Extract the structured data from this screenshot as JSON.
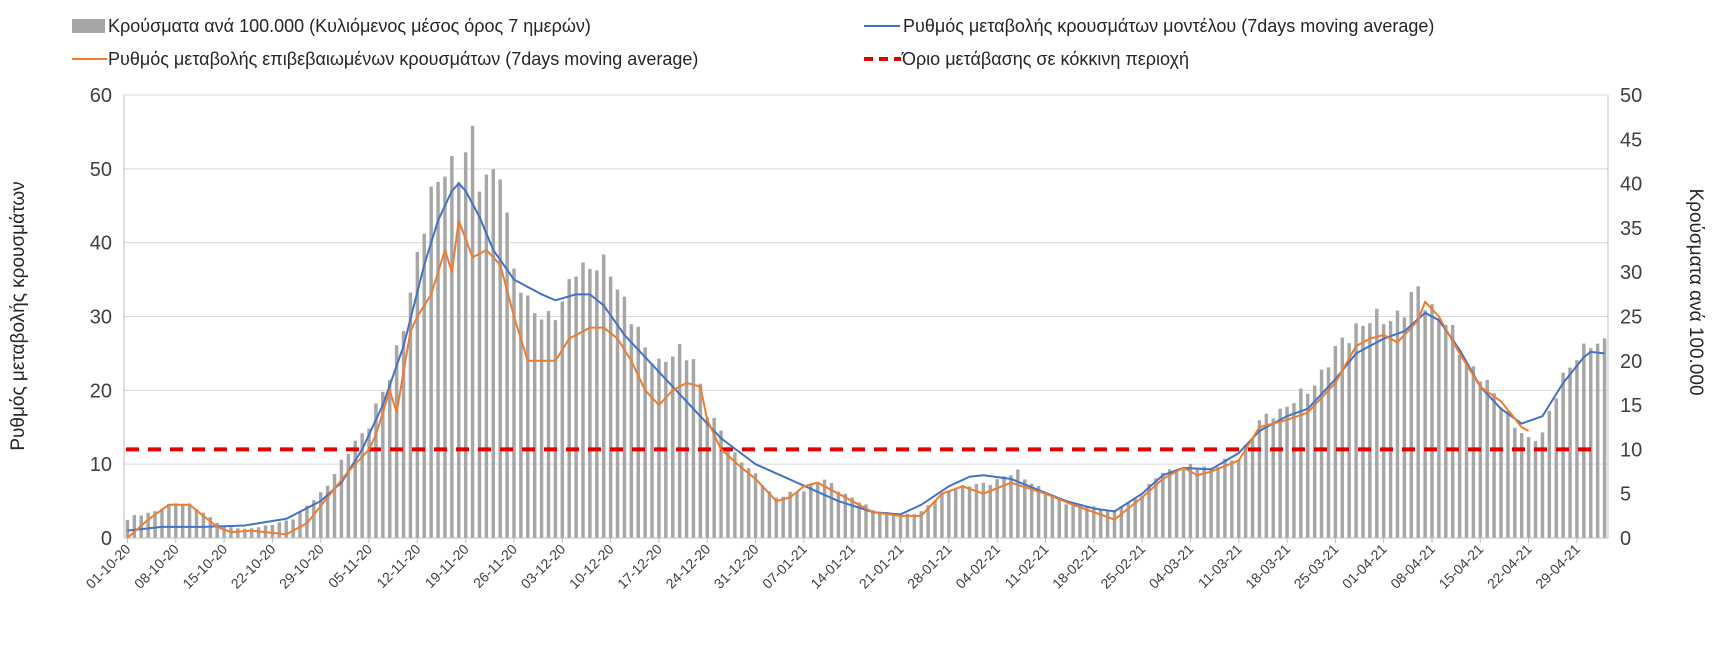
{
  "chart_data": {
    "type": "bar",
    "legend": {
      "bars": "Κρούσματα ανά 100.000 (Κυλιόμενος μέσος όρος 7 ημερών)",
      "model": "Ρυθμός μεταβολής κρουσμάτων μοντέλου (7days moving average)",
      "confirmed": "Ρυθμός μεταβολής επιβεβαιωμένων κρουσμάτων (7days moving average)",
      "threshold": "Όριο μετάβασης σε κόκκινη περιοχή"
    },
    "ylabel_left": "Ρυθμός μεταβολής κρουσμάτων",
    "ylabel_right": "Κρούσματα ανά 100.000",
    "ylim_left": [
      0,
      60
    ],
    "ylim_right": [
      0,
      50
    ],
    "yticks_left": [
      "0",
      "10",
      "20",
      "30",
      "40",
      "50",
      "60"
    ],
    "yticks_right": [
      "0",
      "5",
      "10",
      "15",
      "20",
      "25",
      "30",
      "35",
      "40",
      "45",
      "50"
    ],
    "x_tick_labels": [
      "01-10-20",
      "08-10-20",
      "15-10-20",
      "22-10-20",
      "29-10-20",
      "05-11-20",
      "12-11-20",
      "19-11-20",
      "26-11-20",
      "03-12-20",
      "10-12-20",
      "17-12-20",
      "24-12-20",
      "31-12-20",
      "07-01-21",
      "14-01-21",
      "21-01-21",
      "28-01-21",
      "04-02-21",
      "11-02-21",
      "18-02-21",
      "25-02-21",
      "04-03-21",
      "11-03-21",
      "18-03-21",
      "25-03-21",
      "01-04-21",
      "08-04-21",
      "15-04-21",
      "22-04-21",
      "29-04-21"
    ],
    "x_start": "01-10-20",
    "x_end": "03-05-21",
    "threshold": 12,
    "bars_series": {
      "name": "Κρούσματα ανά 100.000 (Κυλιόμενος μέσος όρος 7 ημερών)",
      "axis": "right",
      "anchors": [
        [
          "01-10-20",
          2.0
        ],
        [
          "02-10-20",
          2.5
        ],
        [
          "05-10-20",
          3.0
        ],
        [
          "08-10-20",
          4.0
        ],
        [
          "10-10-20",
          3.8
        ],
        [
          "12-10-20",
          2.8
        ],
        [
          "15-10-20",
          1.3
        ],
        [
          "18-10-20",
          1.0
        ],
        [
          "22-10-20",
          1.5
        ],
        [
          "25-10-20",
          2.2
        ],
        [
          "29-10-20",
          5.0
        ],
        [
          "01-11-20",
          8.5
        ],
        [
          "05-11-20",
          13.0
        ],
        [
          "08-11-20",
          18.0
        ],
        [
          "12-11-20",
          31.0
        ],
        [
          "14-11-20",
          39.0
        ],
        [
          "16-11-20",
          42.5
        ],
        [
          "18-11-20",
          40.0
        ],
        [
          "19-11-20",
          44.0
        ],
        [
          "20-11-20",
          45.8
        ],
        [
          "21-11-20",
          41.0
        ],
        [
          "23-11-20",
          40.0
        ],
        [
          "24-11-20",
          41.5
        ],
        [
          "26-11-20",
          31.0
        ],
        [
          "28-11-20",
          26.0
        ],
        [
          "30-11-20",
          25.0
        ],
        [
          "03-12-20",
          26.0
        ],
        [
          "05-12-20",
          30.5
        ],
        [
          "07-12-20",
          31.0
        ],
        [
          "10-12-20",
          30.0
        ],
        [
          "12-12-20",
          27.0
        ],
        [
          "15-12-20",
          21.0
        ],
        [
          "17-12-20",
          20.0
        ],
        [
          "20-12-20",
          20.8
        ],
        [
          "22-12-20",
          20.5
        ],
        [
          "24-12-20",
          14.0
        ],
        [
          "26-12-20",
          12.0
        ],
        [
          "28-12-20",
          9.5
        ],
        [
          "31-12-20",
          7.0
        ],
        [
          "03-01-21",
          4.5
        ],
        [
          "05-01-21",
          5.0
        ],
        [
          "07-01-21",
          5.5
        ],
        [
          "10-01-21",
          6.5
        ],
        [
          "14-01-21",
          4.5
        ],
        [
          "17-01-21",
          3.2
        ],
        [
          "21-01-21",
          2.5
        ],
        [
          "24-01-21",
          3.0
        ],
        [
          "28-01-21",
          5.5
        ],
        [
          "01-02-21",
          6.0
        ],
        [
          "04-02-21",
          6.5
        ],
        [
          "07-02-21",
          7.5
        ],
        [
          "11-02-21",
          5.0
        ],
        [
          "14-02-21",
          4.0
        ],
        [
          "18-02-21",
          3.5
        ],
        [
          "21-02-21",
          3.0
        ],
        [
          "25-02-21",
          5.0
        ],
        [
          "28-02-21",
          7.5
        ],
        [
          "04-03-21",
          8.0
        ],
        [
          "07-03-21",
          8.0
        ],
        [
          "11-03-21",
          9.0
        ],
        [
          "14-03-21",
          13.0
        ],
        [
          "18-03-21",
          15.0
        ],
        [
          "21-03-21",
          16.5
        ],
        [
          "25-03-21",
          21.0
        ],
        [
          "28-03-21",
          24.0
        ],
        [
          "01-04-21",
          24.8
        ],
        [
          "04-04-21",
          25.5
        ],
        [
          "06-04-21",
          28.0
        ],
        [
          "08-04-21",
          26.0
        ],
        [
          "11-04-21",
          23.0
        ],
        [
          "13-04-21",
          20.0
        ],
        [
          "15-04-21",
          18.0
        ],
        [
          "18-04-21",
          15.5
        ],
        [
          "20-04-21",
          12.5
        ],
        [
          "22-04-21",
          11.0
        ],
        [
          "24-04-21",
          12.0
        ],
        [
          "27-04-21",
          18.0
        ],
        [
          "29-04-21",
          21.0
        ],
        [
          "03-05-21",
          22.0
        ]
      ]
    },
    "model_series": {
      "name": "Ρυθμός μεταβολής κρουσμάτων μοντέλου (7days moving average)",
      "axis": "left",
      "color": "#4472c4",
      "anchors": [
        [
          "01-10-20",
          1.0
        ],
        [
          "06-10-20",
          1.5
        ],
        [
          "12-10-20",
          1.5
        ],
        [
          "18-10-20",
          1.7
        ],
        [
          "24-10-20",
          2.6
        ],
        [
          "29-10-20",
          5.0
        ],
        [
          "01-11-20",
          7.5
        ],
        [
          "04-11-20",
          12.0
        ],
        [
          "07-11-20",
          18.0
        ],
        [
          "10-11-20",
          26.0
        ],
        [
          "13-11-20",
          37.0
        ],
        [
          "15-11-20",
          43.0
        ],
        [
          "17-11-20",
          47.0
        ],
        [
          "18-11-20",
          48.0
        ],
        [
          "19-11-20",
          47.0
        ],
        [
          "21-11-20",
          43.5
        ],
        [
          "23-11-20",
          39.0
        ],
        [
          "26-11-20",
          35.0
        ],
        [
          "30-11-20",
          33.0
        ],
        [
          "02-12-20",
          32.2
        ],
        [
          "05-12-20",
          33.0
        ],
        [
          "07-12-20",
          33.0
        ],
        [
          "09-12-20",
          31.5
        ],
        [
          "12-12-20",
          27.5
        ],
        [
          "15-12-20",
          24.5
        ],
        [
          "18-12-20",
          21.5
        ],
        [
          "22-12-20",
          17.5
        ],
        [
          "26-12-20",
          13.5
        ],
        [
          "31-12-20",
          10.0
        ],
        [
          "06-01-21",
          7.5
        ],
        [
          "12-01-21",
          5.0
        ],
        [
          "17-01-21",
          3.5
        ],
        [
          "21-01-21",
          3.2
        ],
        [
          "24-01-21",
          4.5
        ],
        [
          "28-01-21",
          7.0
        ],
        [
          "31-01-21",
          8.3
        ],
        [
          "02-02-21",
          8.5
        ],
        [
          "06-02-21",
          8.0
        ],
        [
          "10-02-21",
          6.5
        ],
        [
          "14-02-21",
          5.0
        ],
        [
          "18-02-21",
          4.0
        ],
        [
          "21-02-21",
          3.6
        ],
        [
          "25-02-21",
          6.0
        ],
        [
          "28-02-21",
          8.5
        ],
        [
          "03-03-21",
          9.5
        ],
        [
          "07-03-21",
          9.3
        ],
        [
          "11-03-21",
          11.5
        ],
        [
          "14-03-21",
          14.5
        ],
        [
          "18-03-21",
          16.5
        ],
        [
          "21-03-21",
          17.5
        ],
        [
          "25-03-21",
          21.5
        ],
        [
          "28-03-21",
          25.0
        ],
        [
          "01-04-21",
          27.0
        ],
        [
          "04-04-21",
          28.0
        ],
        [
          "07-04-21",
          30.5
        ],
        [
          "09-04-21",
          29.5
        ],
        [
          "12-04-21",
          25.5
        ],
        [
          "15-04-21",
          20.5
        ],
        [
          "18-04-21",
          17.5
        ],
        [
          "21-04-21",
          15.5
        ],
        [
          "24-04-21",
          16.5
        ],
        [
          "27-04-21",
          21.0
        ],
        [
          "30-04-21",
          24.5
        ],
        [
          "01-05-21",
          25.2
        ],
        [
          "03-05-21",
          25.0
        ]
      ]
    },
    "confirmed_series": {
      "name": "Ρυθμός μεταβολής επιβεβαιωμένων κρουσμάτων (7days moving average)",
      "axis": "left",
      "color": "#ed7d31",
      "anchors": [
        [
          "01-10-20",
          0.0
        ],
        [
          "04-10-20",
          2.5
        ],
        [
          "07-10-20",
          4.5
        ],
        [
          "10-10-20",
          4.5
        ],
        [
          "12-10-20",
          3.0
        ],
        [
          "14-10-20",
          1.5
        ],
        [
          "16-10-20",
          0.8
        ],
        [
          "19-10-20",
          1.0
        ],
        [
          "24-10-20",
          0.5
        ],
        [
          "27-10-20",
          2.0
        ],
        [
          "30-10-20",
          5.5
        ],
        [
          "02-11-20",
          9.0
        ],
        [
          "05-11-20",
          12.0
        ],
        [
          "06-11-20",
          14.0
        ],
        [
          "08-11-20",
          20.0
        ],
        [
          "09-11-20",
          17.0
        ],
        [
          "11-11-20",
          28.0
        ],
        [
          "12-11-20",
          30.0
        ],
        [
          "14-11-20",
          33.0
        ],
        [
          "16-11-20",
          39.0
        ],
        [
          "17-11-20",
          36.0
        ],
        [
          "18-11-20",
          43.0
        ],
        [
          "20-11-20",
          38.0
        ],
        [
          "22-11-20",
          39.0
        ],
        [
          "24-11-20",
          37.0
        ],
        [
          "26-11-20",
          30.0
        ],
        [
          "28-11-20",
          24.0
        ],
        [
          "02-12-20",
          24.0
        ],
        [
          "04-12-20",
          27.0
        ],
        [
          "07-12-20",
          28.5
        ],
        [
          "09-12-20",
          28.5
        ],
        [
          "11-12-20",
          27.0
        ],
        [
          "13-12-20",
          24.0
        ],
        [
          "15-12-20",
          20.0
        ],
        [
          "17-12-20",
          18.0
        ],
        [
          "19-12-20",
          20.0
        ],
        [
          "21-12-20",
          21.0
        ],
        [
          "23-12-20",
          20.5
        ],
        [
          "24-12-20",
          16.0
        ],
        [
          "26-12-20",
          12.0
        ],
        [
          "29-12-20",
          9.5
        ],
        [
          "31-12-20",
          8.0
        ],
        [
          "03-01-21",
          5.0
        ],
        [
          "05-01-21",
          5.5
        ],
        [
          "07-01-21",
          7.0
        ],
        [
          "09-01-21",
          7.5
        ],
        [
          "11-01-21",
          6.5
        ],
        [
          "14-01-21",
          5.0
        ],
        [
          "17-01-21",
          3.5
        ],
        [
          "21-01-21",
          3.0
        ],
        [
          "24-01-21",
          3.0
        ],
        [
          "27-01-21",
          6.0
        ],
        [
          "30-01-21",
          7.0
        ],
        [
          "02-02-21",
          6.0
        ],
        [
          "06-02-21",
          7.5
        ],
        [
          "11-02-21",
          6.0
        ],
        [
          "15-02-21",
          4.5
        ],
        [
          "18-02-21",
          3.5
        ],
        [
          "21-02-21",
          2.5
        ],
        [
          "25-02-21",
          5.5
        ],
        [
          "28-02-21",
          8.0
        ],
        [
          "03-03-21",
          9.5
        ],
        [
          "05-03-21",
          8.5
        ],
        [
          "07-03-21",
          9.0
        ],
        [
          "11-03-21",
          10.5
        ],
        [
          "14-03-21",
          15.0
        ],
        [
          "18-03-21",
          16.0
        ],
        [
          "21-03-21",
          17.0
        ],
        [
          "25-03-21",
          21.0
        ],
        [
          "28-03-21",
          26.0
        ],
        [
          "30-03-21",
          27.0
        ],
        [
          "01-04-21",
          27.5
        ],
        [
          "03-04-21",
          26.5
        ],
        [
          "06-04-21",
          29.5
        ],
        [
          "07-04-21",
          32.0
        ],
        [
          "09-04-21",
          30.0
        ],
        [
          "12-04-21",
          25.0
        ],
        [
          "15-04-21",
          20.5
        ],
        [
          "18-04-21",
          18.5
        ],
        [
          "21-04-21",
          15.0
        ],
        [
          "22-04-21",
          14.5
        ]
      ]
    }
  }
}
